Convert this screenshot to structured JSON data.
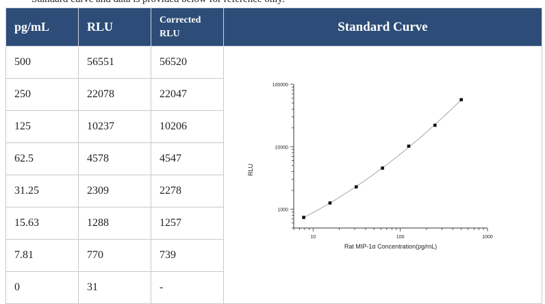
{
  "caption": "Standard curve and data is provided below for reference only.",
  "headers": {
    "conc": "pg/mL",
    "rlu": "RLU",
    "corrected_line1": "Corrected",
    "corrected_line2": "RLU",
    "curve": "Standard Curve"
  },
  "rows": [
    {
      "conc": "500",
      "rlu": "56551",
      "corrected": "56520"
    },
    {
      "conc": "250",
      "rlu": "22078",
      "corrected": "22047"
    },
    {
      "conc": "125",
      "rlu": "10237",
      "corrected": "10206"
    },
    {
      "conc": "62.5",
      "rlu": "4578",
      "corrected": "4547"
    },
    {
      "conc": "31.25",
      "rlu": "2309",
      "corrected": "2278"
    },
    {
      "conc": "15.63",
      "rlu": "1288",
      "corrected": "1257"
    },
    {
      "conc": "7.81",
      "rlu": "770",
      "corrected": "739"
    },
    {
      "conc": "0",
      "rlu": "31",
      "corrected": "-"
    }
  ],
  "chart_data": {
    "type": "scatter",
    "xscale": "log",
    "yscale": "log",
    "xlabel": "Rat MIP-1α Concentration(pg/mL)",
    "ylabel": "RLU",
    "xlim": [
      6,
      1000
    ],
    "ylim": [
      500,
      100000
    ],
    "xticks": [
      "10",
      "100",
      "1000"
    ],
    "yticks": [
      "1000",
      "10000",
      "100000"
    ],
    "points": [
      {
        "x": 7.81,
        "y": 739
      },
      {
        "x": 15.63,
        "y": 1257
      },
      {
        "x": 31.25,
        "y": 2278
      },
      {
        "x": 62.5,
        "y": 4547
      },
      {
        "x": 125,
        "y": 10206
      },
      {
        "x": 250,
        "y": 22047
      },
      {
        "x": 500,
        "y": 56520
      }
    ],
    "fit_line": true,
    "grid": false,
    "marker_color": "#111111",
    "line_color": "#9a9a9a"
  },
  "colors": {
    "header_bg": "#2d4d78",
    "header_text": "#ffffff"
  }
}
